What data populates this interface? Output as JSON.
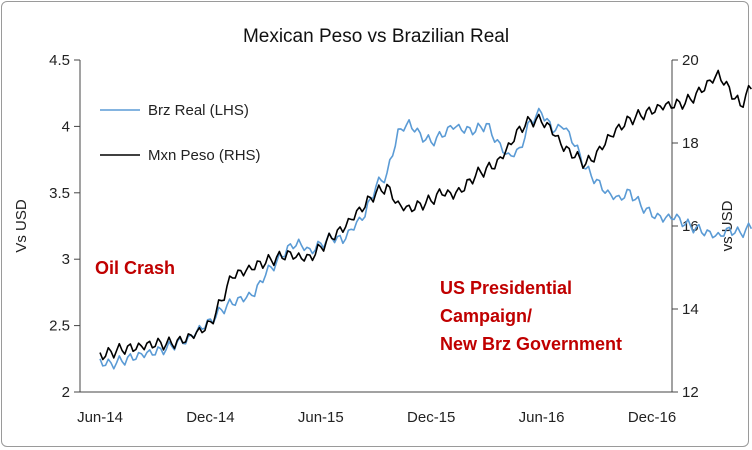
{
  "chart_data": {
    "type": "line",
    "title": "Mexican Peso vs Brazilian Real",
    "ylabel_left": "Vs USD",
    "ylabel_right": "vs USD",
    "ylim_left": [
      2,
      4.5
    ],
    "ylim_right": [
      12,
      20
    ],
    "yticks_left": [
      "2",
      "2.5",
      "3",
      "3.5",
      "4",
      "4.5"
    ],
    "yticks_right": [
      "12",
      "14",
      "16",
      "18",
      "20"
    ],
    "x_categories": [
      "Jun-14",
      "Dec-14",
      "Jun-15",
      "Dec-15",
      "Jun-16",
      "Dec-16"
    ],
    "grid": false,
    "legend_position": "top-left",
    "series": [
      {
        "name": "Brz Real (LHS)",
        "axis": "left",
        "color": "#5b9bd5",
        "x": [
          0,
          0.1,
          0.2,
          0.3,
          0.4,
          0.5,
          0.6,
          0.7,
          0.8,
          0.9,
          1.0,
          1.1,
          1.2,
          1.3,
          1.4,
          1.5,
          1.6,
          1.7,
          1.8,
          1.9,
          2.0,
          2.1,
          2.2,
          2.3,
          2.4,
          2.5,
          2.6,
          2.7,
          2.8,
          2.9,
          3.0,
          3.1,
          3.2,
          3.3,
          3.4,
          3.5,
          3.6,
          3.7,
          3.8,
          3.9,
          4.0,
          4.1,
          4.2,
          4.3,
          4.4,
          4.5,
          4.6,
          4.7,
          4.8,
          4.9,
          5.0,
          5.1,
          5.2,
          5.3,
          5.4,
          5.5,
          5.6,
          5.7,
          5.8,
          5.9
        ],
        "values": [
          2.25,
          2.22,
          2.23,
          2.24,
          2.26,
          2.28,
          2.32,
          2.38,
          2.42,
          2.5,
          2.55,
          2.62,
          2.66,
          2.68,
          2.72,
          2.88,
          2.98,
          3.1,
          3.15,
          3.08,
          3.12,
          3.16,
          3.12,
          3.22,
          3.32,
          3.55,
          3.65,
          3.98,
          4.05,
          3.95,
          3.88,
          3.92,
          3.98,
          3.95,
          3.96,
          4.02,
          3.9,
          3.8,
          3.84,
          4.05,
          4.1,
          3.95,
          3.98,
          3.85,
          3.68,
          3.6,
          3.52,
          3.48,
          3.52,
          3.4,
          3.32,
          3.28,
          3.3,
          3.26,
          3.24,
          3.22,
          3.2,
          3.24,
          3.2,
          3.23
        ]
      },
      {
        "name": "Mxn Peso (RHS)",
        "axis": "right",
        "color": "#000000",
        "x": [
          0,
          0.1,
          0.2,
          0.3,
          0.4,
          0.5,
          0.6,
          0.7,
          0.8,
          0.9,
          1.0,
          1.1,
          1.2,
          1.3,
          1.4,
          1.5,
          1.6,
          1.7,
          1.8,
          1.9,
          2.0,
          2.1,
          2.2,
          2.3,
          2.4,
          2.5,
          2.6,
          2.7,
          2.8,
          2.9,
          3.0,
          3.1,
          3.2,
          3.3,
          3.4,
          3.5,
          3.6,
          3.7,
          3.8,
          3.9,
          4.0,
          4.1,
          4.2,
          4.3,
          4.4,
          4.5,
          4.6,
          4.7,
          4.8,
          4.9,
          5.0,
          5.1,
          5.2,
          5.3,
          5.4,
          5.5,
          5.6,
          5.7,
          5.8,
          5.9
        ],
        "values": [
          12.95,
          12.98,
          13.0,
          12.98,
          13.02,
          13.1,
          13.15,
          13.25,
          13.4,
          13.55,
          13.7,
          14.2,
          14.75,
          14.8,
          14.95,
          15.1,
          15.25,
          15.4,
          15.35,
          15.3,
          15.5,
          15.7,
          15.85,
          16.15,
          16.45,
          16.8,
          17.0,
          16.6,
          16.5,
          16.55,
          16.6,
          16.75,
          16.65,
          16.85,
          17.2,
          17.4,
          17.6,
          18.0,
          18.4,
          18.55,
          18.5,
          18.2,
          17.8,
          17.65,
          17.5,
          17.8,
          18.2,
          18.45,
          18.6,
          18.65,
          18.7,
          18.8,
          18.85,
          18.95,
          19.2,
          19.5,
          19.75,
          19.35,
          18.9,
          19.3
        ]
      }
    ],
    "annotations": [
      {
        "lines": [
          "Oil Crash"
        ]
      },
      {
        "lines": [
          "US Presidential",
          "Campaign/",
          "New Brz Government"
        ]
      }
    ]
  }
}
